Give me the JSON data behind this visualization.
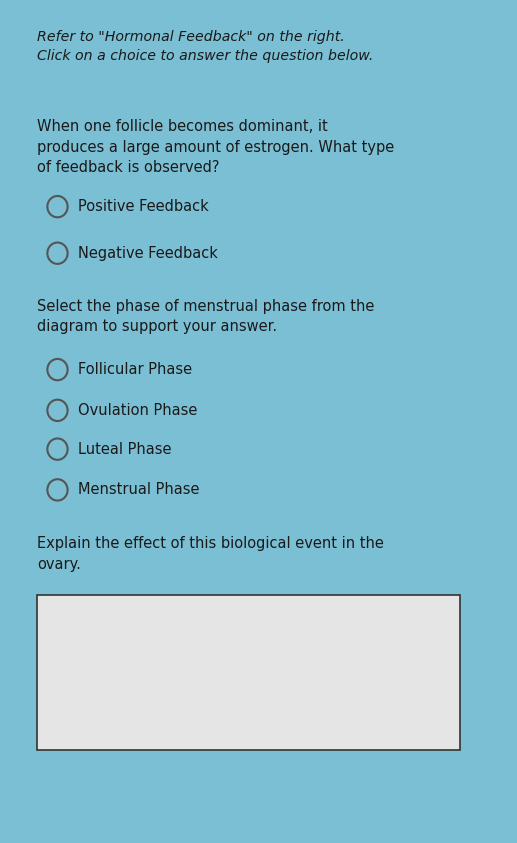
{
  "bg_outer": "#7bbfd4",
  "bg_inner": "#e5e5e5",
  "text_color": "#1a1a1a",
  "header_line1": "Refer to \"Hormonal Feedback\" on the right.",
  "header_line2": "Click on a choice to answer the question below.",
  "question1": "When one follicle becomes dominant, it\nproduces a large amount of estrogen. What type\nof feedback is observed?",
  "choices1": [
    "Positive Feedback",
    "Negative Feedback"
  ],
  "question2": "Select the phase of menstrual phase from the\ndiagram to support your answer.",
  "choices2": [
    "Follicular Phase",
    "Ovulation Phase",
    "Luteal Phase",
    "Menstrual Phase"
  ],
  "question3": "Explain the effect of this biological event in the\novary.",
  "box_color": "#e5e5e5",
  "box_border": "#333333",
  "figwidth": 5.17,
  "figheight": 8.43,
  "dpi": 100
}
